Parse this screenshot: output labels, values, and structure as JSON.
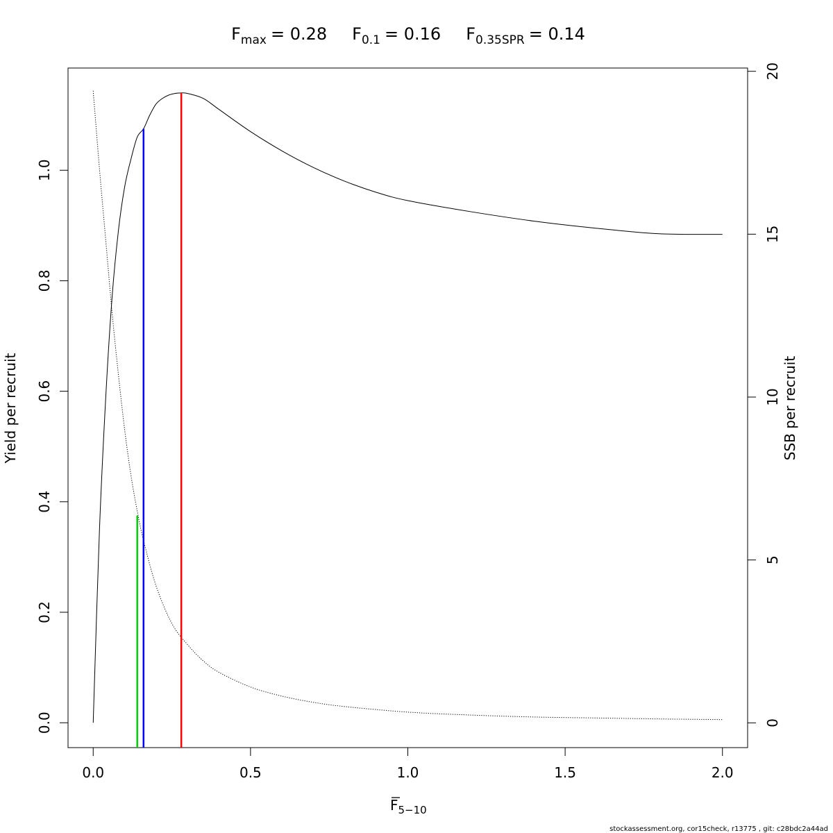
{
  "chart_data": {
    "type": "line",
    "title": {
      "fmax": {
        "base": "F",
        "sub": "max",
        "value": "= 0.28"
      },
      "f01": {
        "base": "F",
        "sub": "0.1",
        "value": "= 0.16"
      },
      "fspr": {
        "base": "F",
        "sub": "0.35SPR",
        "value": "= 0.14"
      }
    },
    "xlabel": {
      "base": "F",
      "sub": "5−10"
    },
    "ylabel_left": "Yield per recruit",
    "ylabel_right": "SSB per recruit",
    "xlim": [
      -0.08,
      2.08
    ],
    "ylim_left": [
      -0.045,
      1.185
    ],
    "ylim_right": [
      -0.76,
      20.1
    ],
    "x_ticks": [
      "0.0",
      "0.5",
      "1.0",
      "1.5",
      "2.0"
    ],
    "y_left_ticks": [
      "0.0",
      "0.2",
      "0.4",
      "0.6",
      "0.8",
      "1.0"
    ],
    "y_right_ticks": [
      "0",
      "5",
      "10",
      "15",
      "20"
    ],
    "series": [
      {
        "axis": "left",
        "style": "solid",
        "color": "#000000",
        "x": [
          0,
          0.02,
          0.04,
          0.06,
          0.08,
          0.1,
          0.12,
          0.14,
          0.16,
          0.18,
          0.2,
          0.22,
          0.24,
          0.26,
          0.28,
          0.3,
          0.35,
          0.4,
          0.5,
          0.6,
          0.7,
          0.8,
          0.9,
          1.0,
          1.2,
          1.4,
          1.6,
          1.8,
          2.0
        ],
        "y": [
          0.0,
          0.35,
          0.59,
          0.77,
          0.89,
          0.97,
          1.02,
          1.06,
          1.075,
          1.1,
          1.12,
          1.13,
          1.136,
          1.139,
          1.14,
          1.139,
          1.13,
          1.11,
          1.07,
          1.035,
          1.005,
          0.98,
          0.96,
          0.945,
          0.925,
          0.908,
          0.895,
          0.885,
          0.884
        ]
      },
      {
        "axis": "right",
        "style": "dotted",
        "color": "#000000",
        "x": [
          0,
          0.02,
          0.04,
          0.06,
          0.08,
          0.1,
          0.12,
          0.14,
          0.16,
          0.2,
          0.25,
          0.3,
          0.35,
          0.4,
          0.5,
          0.6,
          0.7,
          0.8,
          1.0,
          1.2,
          1.4,
          1.6,
          1.8,
          2.0
        ],
        "y": [
          19.4,
          17.0,
          14.8,
          12.6,
          10.7,
          9.0,
          7.6,
          6.5,
          5.6,
          4.2,
          3.05,
          2.4,
          1.9,
          1.55,
          1.1,
          0.82,
          0.63,
          0.5,
          0.33,
          0.24,
          0.18,
          0.15,
          0.12,
          0.1
        ]
      }
    ],
    "reference_lines": [
      {
        "name": "Fmax",
        "x": 0.28,
        "y": 1.14,
        "color": "#ff0000"
      },
      {
        "name": "F0.1",
        "x": 0.16,
        "y": 1.075,
        "color": "#0000ff"
      },
      {
        "name": "F0.35SPR",
        "x": 0.14,
        "y": 0.375,
        "color": "#00cc00"
      }
    ]
  },
  "footer_text": "stockassessment.org, cor15check, r13775 , git: c28bdc2a44ad"
}
